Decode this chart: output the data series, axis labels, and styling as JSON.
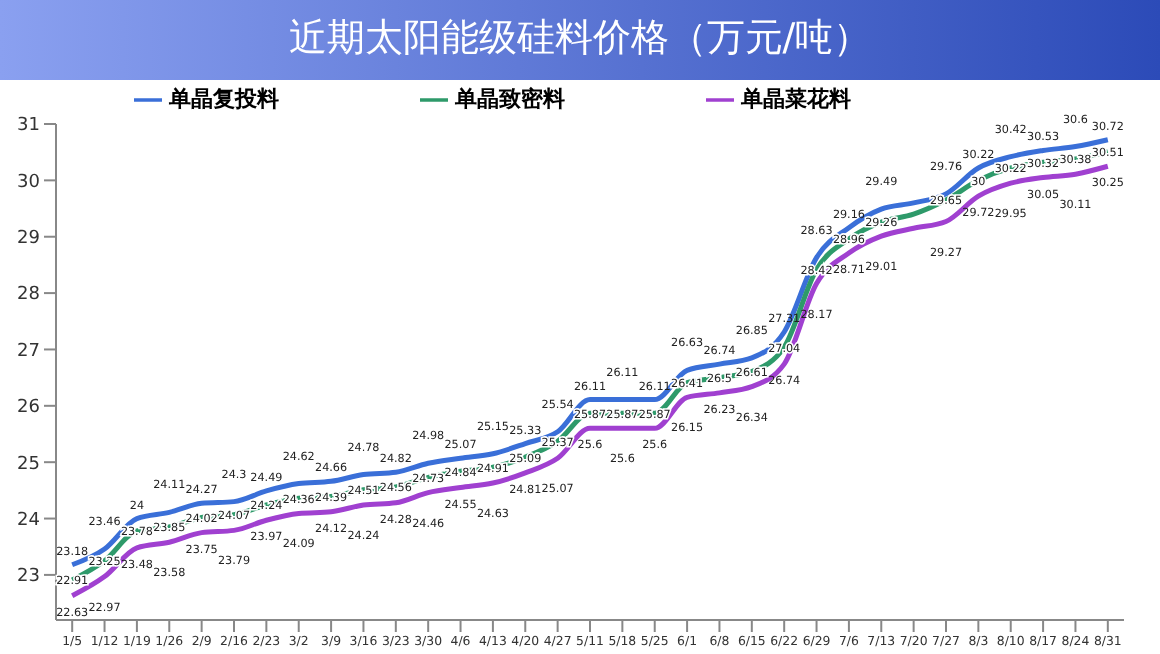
{
  "chart_data": {
    "type": "line",
    "title": "近期太阳能级硅料价格（万元/吨）",
    "categories": [
      "1/5",
      "1/12",
      "1/19",
      "1/26",
      "2/9",
      "2/16",
      "2/23",
      "3/2",
      "3/9",
      "3/16",
      "3/23",
      "3/30",
      "4/6",
      "4/13",
      "4/20",
      "4/27",
      "5/11",
      "5/18",
      "5/25",
      "6/1",
      "6/8",
      "6/15",
      "6/22",
      "6/29",
      "7/6",
      "7/13",
      "7/20",
      "7/27",
      "8/3",
      "8/10",
      "8/17",
      "8/24",
      "8/31"
    ],
    "series": [
      {
        "name": "单晶复投料",
        "color": "#3a6fd8",
        "values": [
          23.18,
          23.46,
          24,
          24.11,
          24.27,
          24.3,
          24.49,
          24.62,
          24.66,
          24.78,
          24.82,
          24.98,
          25.07,
          25.15,
          25.33,
          25.54,
          26.11,
          26.11,
          26.11,
          26.63,
          26.74,
          26.85,
          27.31,
          28.63,
          29.16,
          29.49,
          29.6,
          29.76,
          30.22,
          30.42,
          30.53,
          30.6,
          30.72
        ],
        "value_labels": [
          "23.18",
          "23.46",
          "24",
          "24.11",
          "24.27",
          "24.3",
          "24.49",
          "24.62",
          "24.66",
          "24.78",
          "24.82",
          "24.98",
          "25.07",
          "25.15",
          "25.33",
          "25.54",
          "26.11",
          "26.11",
          "26.11",
          "26.63",
          "26.74",
          "26.85",
          "27.31",
          "28.63",
          "29.16",
          "29.49",
          null,
          "29.76",
          "30.22",
          "30.42",
          "30.53",
          "30.6",
          "30.72"
        ]
      },
      {
        "name": "单晶致密料",
        "color": "#2e9a6a",
        "values": [
          22.91,
          23.25,
          23.78,
          23.85,
          24.02,
          24.07,
          24.24,
          24.36,
          24.39,
          24.51,
          24.56,
          24.73,
          24.84,
          24.91,
          25.09,
          25.37,
          25.87,
          25.87,
          25.87,
          26.41,
          26.5,
          26.61,
          27.04,
          28.42,
          28.96,
          29.26,
          29.4,
          29.65,
          30,
          30.22,
          30.32,
          30.38,
          30.51
        ],
        "value_labels": [
          "22.91",
          "23.25",
          "23.78",
          "23.85",
          "24.02",
          "24.07",
          "24.24",
          "24.36",
          "24.39",
          "24.51",
          "24.56",
          "24.73",
          "24.84",
          "24.91",
          "25.09",
          "25.37",
          "25.87",
          "25.87",
          "25.87",
          "26.41",
          "26.5",
          "26.61",
          "27.04",
          "28.42",
          "28.96",
          "29.26",
          null,
          "29.65",
          "30",
          "30.22",
          "30.32",
          "30.38",
          "30.51"
        ]
      },
      {
        "name": "单晶菜花料",
        "color": "#a040d0",
        "values": [
          22.63,
          22.97,
          23.48,
          23.58,
          23.75,
          23.79,
          23.97,
          24.09,
          24.12,
          24.24,
          24.28,
          24.46,
          24.55,
          24.63,
          24.81,
          25.07,
          25.6,
          25.6,
          25.6,
          26.15,
          26.23,
          26.34,
          26.74,
          28.17,
          28.71,
          29.01,
          29.15,
          29.27,
          29.72,
          29.95,
          30.05,
          30.11,
          30.25
        ],
        "value_labels": [
          "22.63",
          "22.97",
          "23.48",
          "23.58",
          "23.75",
          "23.79",
          "23.97",
          "24.09",
          "24.12",
          "24.24",
          "24.28",
          "24.46",
          "24.55",
          "24.63",
          "24.81",
          "25.07",
          "25.6",
          "25.6",
          "25.6",
          "26.15",
          "26.23",
          "26.34",
          "26.74",
          "28.17",
          "28.71",
          "29.01",
          null,
          "29.27",
          "29.72",
          "29.95",
          "30.05",
          "30.11",
          "30.25"
        ]
      }
    ],
    "ylim": [
      22.2,
      31
    ],
    "yticks": [
      23,
      24,
      25,
      26,
      27,
      28,
      29,
      30,
      31
    ],
    "grid": false,
    "legend": "top",
    "marker": "none"
  }
}
